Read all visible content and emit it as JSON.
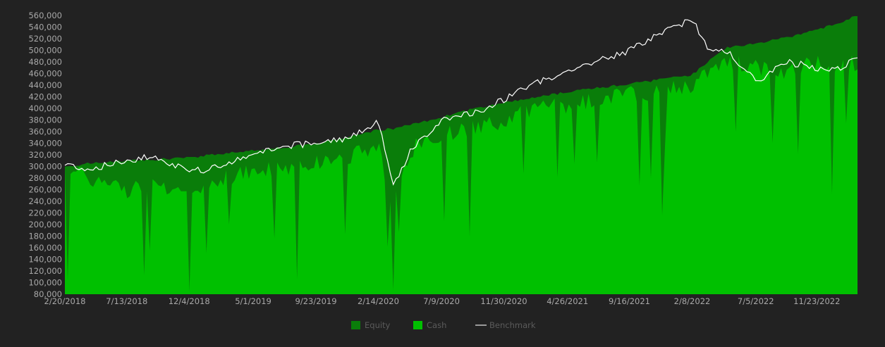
{
  "chart_data": {
    "type": "area",
    "title": "",
    "xlabel": "",
    "ylabel": "",
    "ylim": [
      80000,
      560000
    ],
    "grid": false,
    "legend_position": "bottom",
    "colors": {
      "background": "#222222",
      "equity": "#0a7d0a",
      "cash": "#00c000",
      "benchmark": "#ffffff",
      "tick_text": "#a8a8a8",
      "legend_text": "#5b5b5b"
    },
    "y_ticks": [
      "80,000",
      "100,000",
      "120,000",
      "140,000",
      "160,000",
      "180,000",
      "200,000",
      "220,000",
      "240,000",
      "260,000",
      "280,000",
      "300,000",
      "320,000",
      "340,000",
      "360,000",
      "380,000",
      "400,000",
      "420,000",
      "440,000",
      "460,000",
      "480,000",
      "500,000",
      "520,000",
      "540,000",
      "560,000"
    ],
    "x_ticks": [
      "2/20/2018",
      "7/13/2018",
      "12/4/2018",
      "5/1/2019",
      "9/23/2019",
      "2/14/2020",
      "7/9/2020",
      "11/30/2020",
      "4/26/2021",
      "9/16/2021",
      "2/8/2022",
      "7/5/2022",
      "11/23/2022"
    ],
    "x": [
      "2018-02-20",
      "2018-04-15",
      "2018-07-13",
      "2018-09-15",
      "2018-12-04",
      "2019-02-15",
      "2019-05-01",
      "2019-07-15",
      "2019-09-23",
      "2019-12-15",
      "2020-02-14",
      "2020-03-20",
      "2020-05-01",
      "2020-07-09",
      "2020-09-15",
      "2020-11-30",
      "2021-02-15",
      "2021-04-26",
      "2021-06-30",
      "2021-09-16",
      "2021-11-30",
      "2022-02-08",
      "2022-03-15",
      "2022-05-01",
      "2022-07-05",
      "2022-09-15",
      "2022-11-23",
      "2023-01-15",
      "2023-02-25"
    ],
    "series": [
      {
        "name": "Equity",
        "values": [
          300000,
          305000,
          310000,
          312000,
          315000,
          322000,
          328000,
          333000,
          340000,
          352000,
          363000,
          365000,
          372000,
          385000,
          398000,
          410000,
          420000,
          428000,
          435000,
          442000,
          450000,
          458000,
          480000,
          505000,
          512000,
          522000,
          535000,
          548000,
          560000
        ]
      },
      {
        "name": "Cash",
        "values": [
          298000,
          280000,
          260000,
          270000,
          255000,
          280000,
          290000,
          300000,
          305000,
          320000,
          335000,
          230000,
          330000,
          355000,
          365000,
          380000,
          400000,
          405000,
          415000,
          425000,
          430000,
          440000,
          460000,
          480000,
          470000,
          465000,
          480000,
          470000,
          480000
        ]
      },
      {
        "name": "Benchmark",
        "values": [
          305000,
          295000,
          310000,
          320000,
          290000,
          300000,
          320000,
          335000,
          340000,
          350000,
          380000,
          265000,
          330000,
          380000,
          390000,
          415000,
          445000,
          465000,
          480000,
          500000,
          530000,
          555000,
          505000,
          500000,
          445000,
          480000,
          470000,
          470000,
          485000
        ]
      }
    ]
  }
}
